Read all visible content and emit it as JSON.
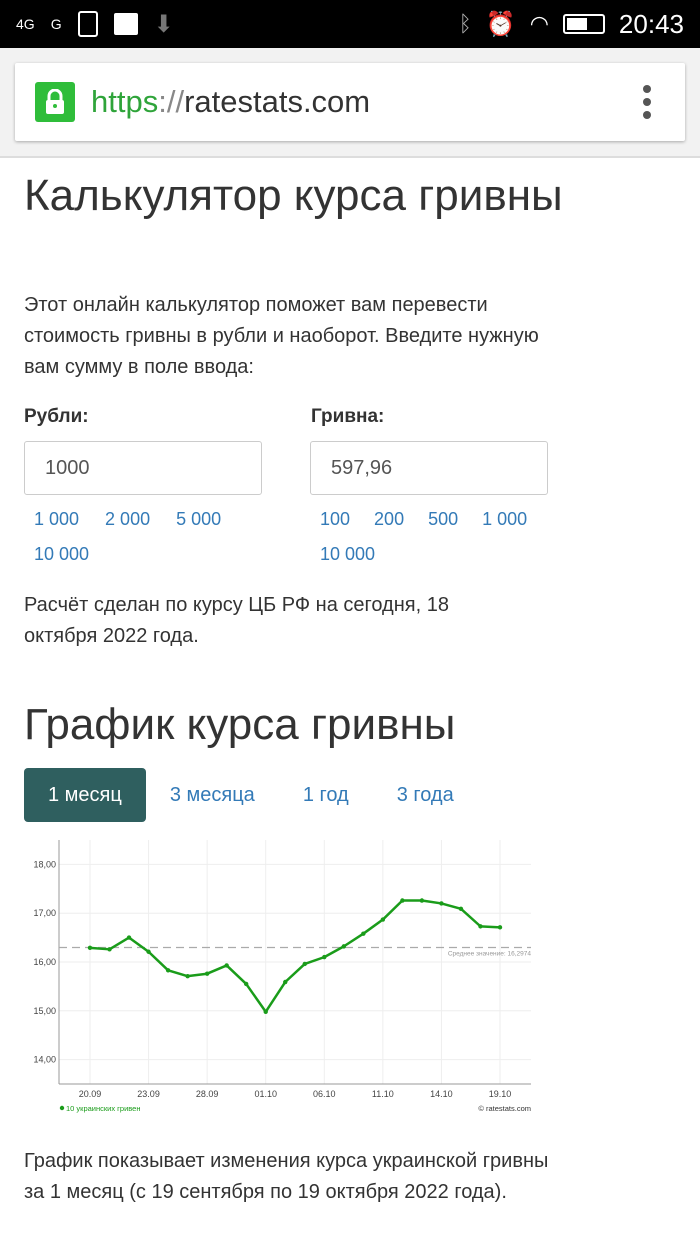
{
  "status_bar": {
    "left": [
      "4G",
      "G"
    ],
    "time": "20:43"
  },
  "browser": {
    "scheme": "https",
    "sep": "://",
    "host": "ratestats.com"
  },
  "calculator": {
    "title": "Калькулятор курса гривны",
    "intro": "Этот онлайн калькулятор поможет вам перевести стоимость гривны в рубли и наоборот. Введите нужную вам сумму в поле ввода:",
    "rub_label": "Рубли:",
    "rub_value": "1000",
    "rub_quick": [
      "1 000",
      "2 000",
      "5 000",
      "10 000"
    ],
    "uah_label": "Гривна:",
    "uah_value": "597,96",
    "uah_quick": [
      "100",
      "200",
      "500",
      "1 000",
      "10 000"
    ],
    "note": "Расчёт сделан по курсу ЦБ РФ на сегодня, 18 октября 2022 года."
  },
  "chart_section": {
    "title": "График курса гривны",
    "tabs": [
      "1 месяц",
      "3 месяца",
      "1 год",
      "3 года"
    ],
    "active_tab": 0,
    "description": "График показывает изменения курса украинской гривны за 1 месяц (с 19 сентября по 19 октября 2022 года)."
  },
  "chart_data": {
    "type": "line",
    "yticks": [
      "14,00",
      "15,00",
      "16,00",
      "17,00",
      "18,00"
    ],
    "ylim": [
      13.5,
      18.5
    ],
    "xticks": [
      {
        "i": 0,
        "label": "20.09"
      },
      {
        "i": 3,
        "label": "23.09"
      },
      {
        "i": 6,
        "label": "28.09"
      },
      {
        "i": 9,
        "label": "01.10"
      },
      {
        "i": 12,
        "label": "06.10"
      },
      {
        "i": 15,
        "label": "11.10"
      },
      {
        "i": 18,
        "label": "14.10"
      },
      {
        "i": 21,
        "label": "19.10"
      }
    ],
    "series": [
      {
        "name": "10 украинских гривен",
        "color": "#1a9c1a",
        "values": [
          16.29,
          16.26,
          16.5,
          16.21,
          15.83,
          15.71,
          15.76,
          15.93,
          15.55,
          14.98,
          15.59,
          15.96,
          16.1,
          16.32,
          16.58,
          16.87,
          17.26,
          17.26,
          17.2,
          17.09,
          16.73,
          16.71
        ]
      }
    ],
    "average": {
      "value": 16.2974,
      "label": "Среднее значение: 16,2974"
    },
    "grid": true,
    "legend": "bottom-left",
    "credit": "© ratestats.com"
  }
}
